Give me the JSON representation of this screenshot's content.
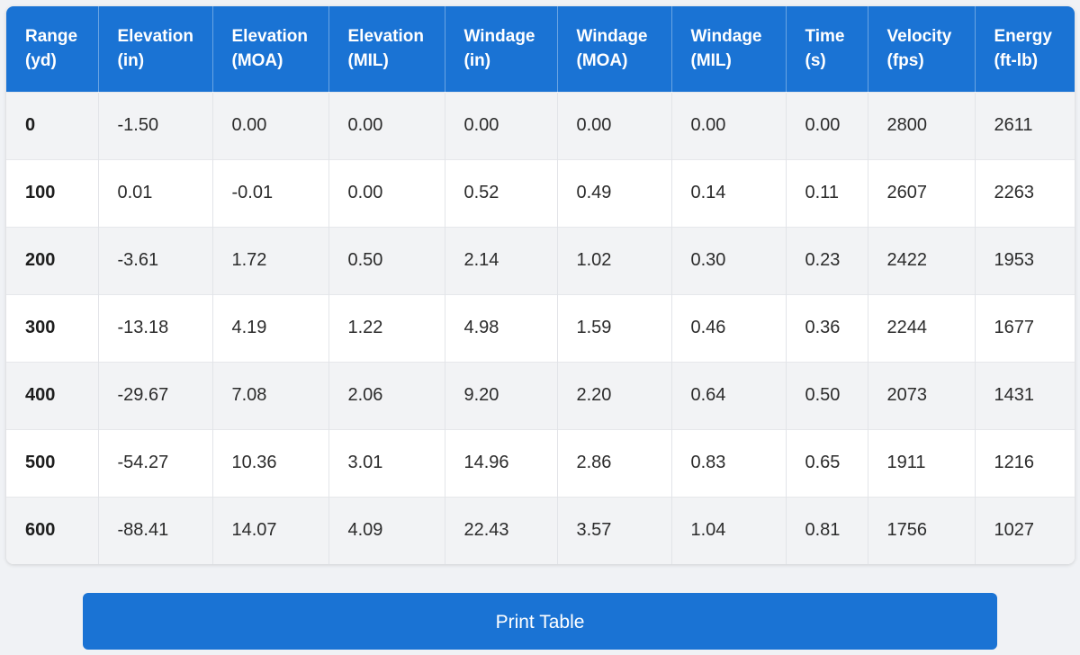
{
  "table": {
    "columns": [
      {
        "line1": "Range",
        "line2": "(yd)"
      },
      {
        "line1": "Elevation",
        "line2": "(in)"
      },
      {
        "line1": "Elevation",
        "line2": "(MOA)"
      },
      {
        "line1": "Elevation",
        "line2": "(MIL)"
      },
      {
        "line1": "Windage",
        "line2": "(in)"
      },
      {
        "line1": "Windage",
        "line2": "(MOA)"
      },
      {
        "line1": "Windage",
        "line2": "(MIL)"
      },
      {
        "line1": "Time",
        "line2": "(s)"
      },
      {
        "line1": "Velocity",
        "line2": "(fps)"
      },
      {
        "line1": "Energy",
        "line2": "(ft-lb)"
      }
    ],
    "rows": [
      [
        "0",
        "-1.50",
        "0.00",
        "0.00",
        "0.00",
        "0.00",
        "0.00",
        "0.00",
        "2800",
        "2611"
      ],
      [
        "100",
        "0.01",
        "-0.01",
        "0.00",
        "0.52",
        "0.49",
        "0.14",
        "0.11",
        "2607",
        "2263"
      ],
      [
        "200",
        "-3.61",
        "1.72",
        "0.50",
        "2.14",
        "1.02",
        "0.30",
        "0.23",
        "2422",
        "1953"
      ],
      [
        "300",
        "-13.18",
        "4.19",
        "1.22",
        "4.98",
        "1.59",
        "0.46",
        "0.36",
        "2244",
        "1677"
      ],
      [
        "400",
        "-29.67",
        "7.08",
        "2.06",
        "9.20",
        "2.20",
        "0.64",
        "0.50",
        "2073",
        "1431"
      ],
      [
        "500",
        "-54.27",
        "10.36",
        "3.01",
        "14.96",
        "2.86",
        "0.83",
        "0.65",
        "1911",
        "1216"
      ],
      [
        "600",
        "-88.41",
        "14.07",
        "4.09",
        "22.43",
        "3.57",
        "1.04",
        "0.81",
        "1756",
        "1027"
      ]
    ]
  },
  "actions": {
    "print_label": "Print Table"
  },
  "colors": {
    "accent": "#1a73d4",
    "row_alt": "#f2f3f5",
    "background": "#f0f2f5"
  }
}
